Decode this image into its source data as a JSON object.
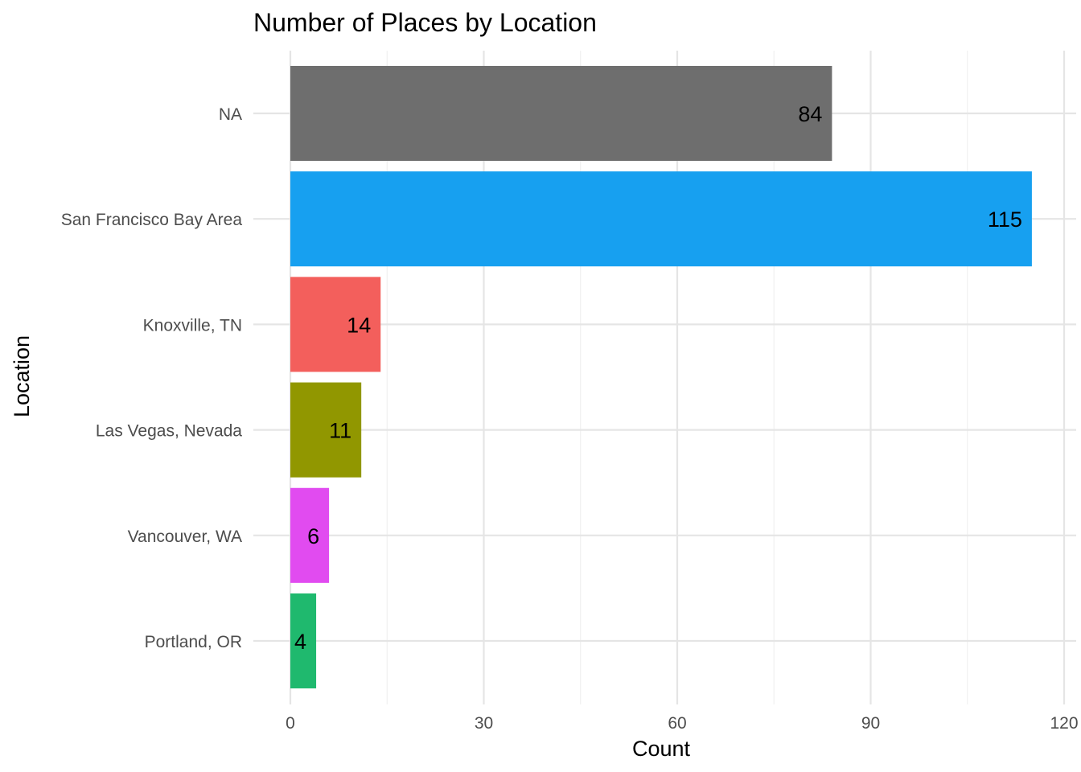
{
  "chart_data": {
    "type": "bar",
    "orientation": "horizontal",
    "title": "Number of Places by Location",
    "xlabel": "Count",
    "ylabel": "Location",
    "xlim": [
      0,
      120
    ],
    "x_ticks": [
      0,
      30,
      60,
      90,
      120
    ],
    "grid": true,
    "legend": "none",
    "categories": [
      "NA",
      "San Francisco Bay Area",
      "Knoxville, TN",
      "Las Vegas, Nevada",
      "Vancouver, WA",
      "Portland, OR"
    ],
    "values": [
      84,
      115,
      14,
      11,
      6,
      4
    ],
    "colors": [
      "#6e6e6e",
      "#17a0f0",
      "#f35f5c",
      "#919700",
      "#e14bf0",
      "#1fb96e"
    ]
  }
}
